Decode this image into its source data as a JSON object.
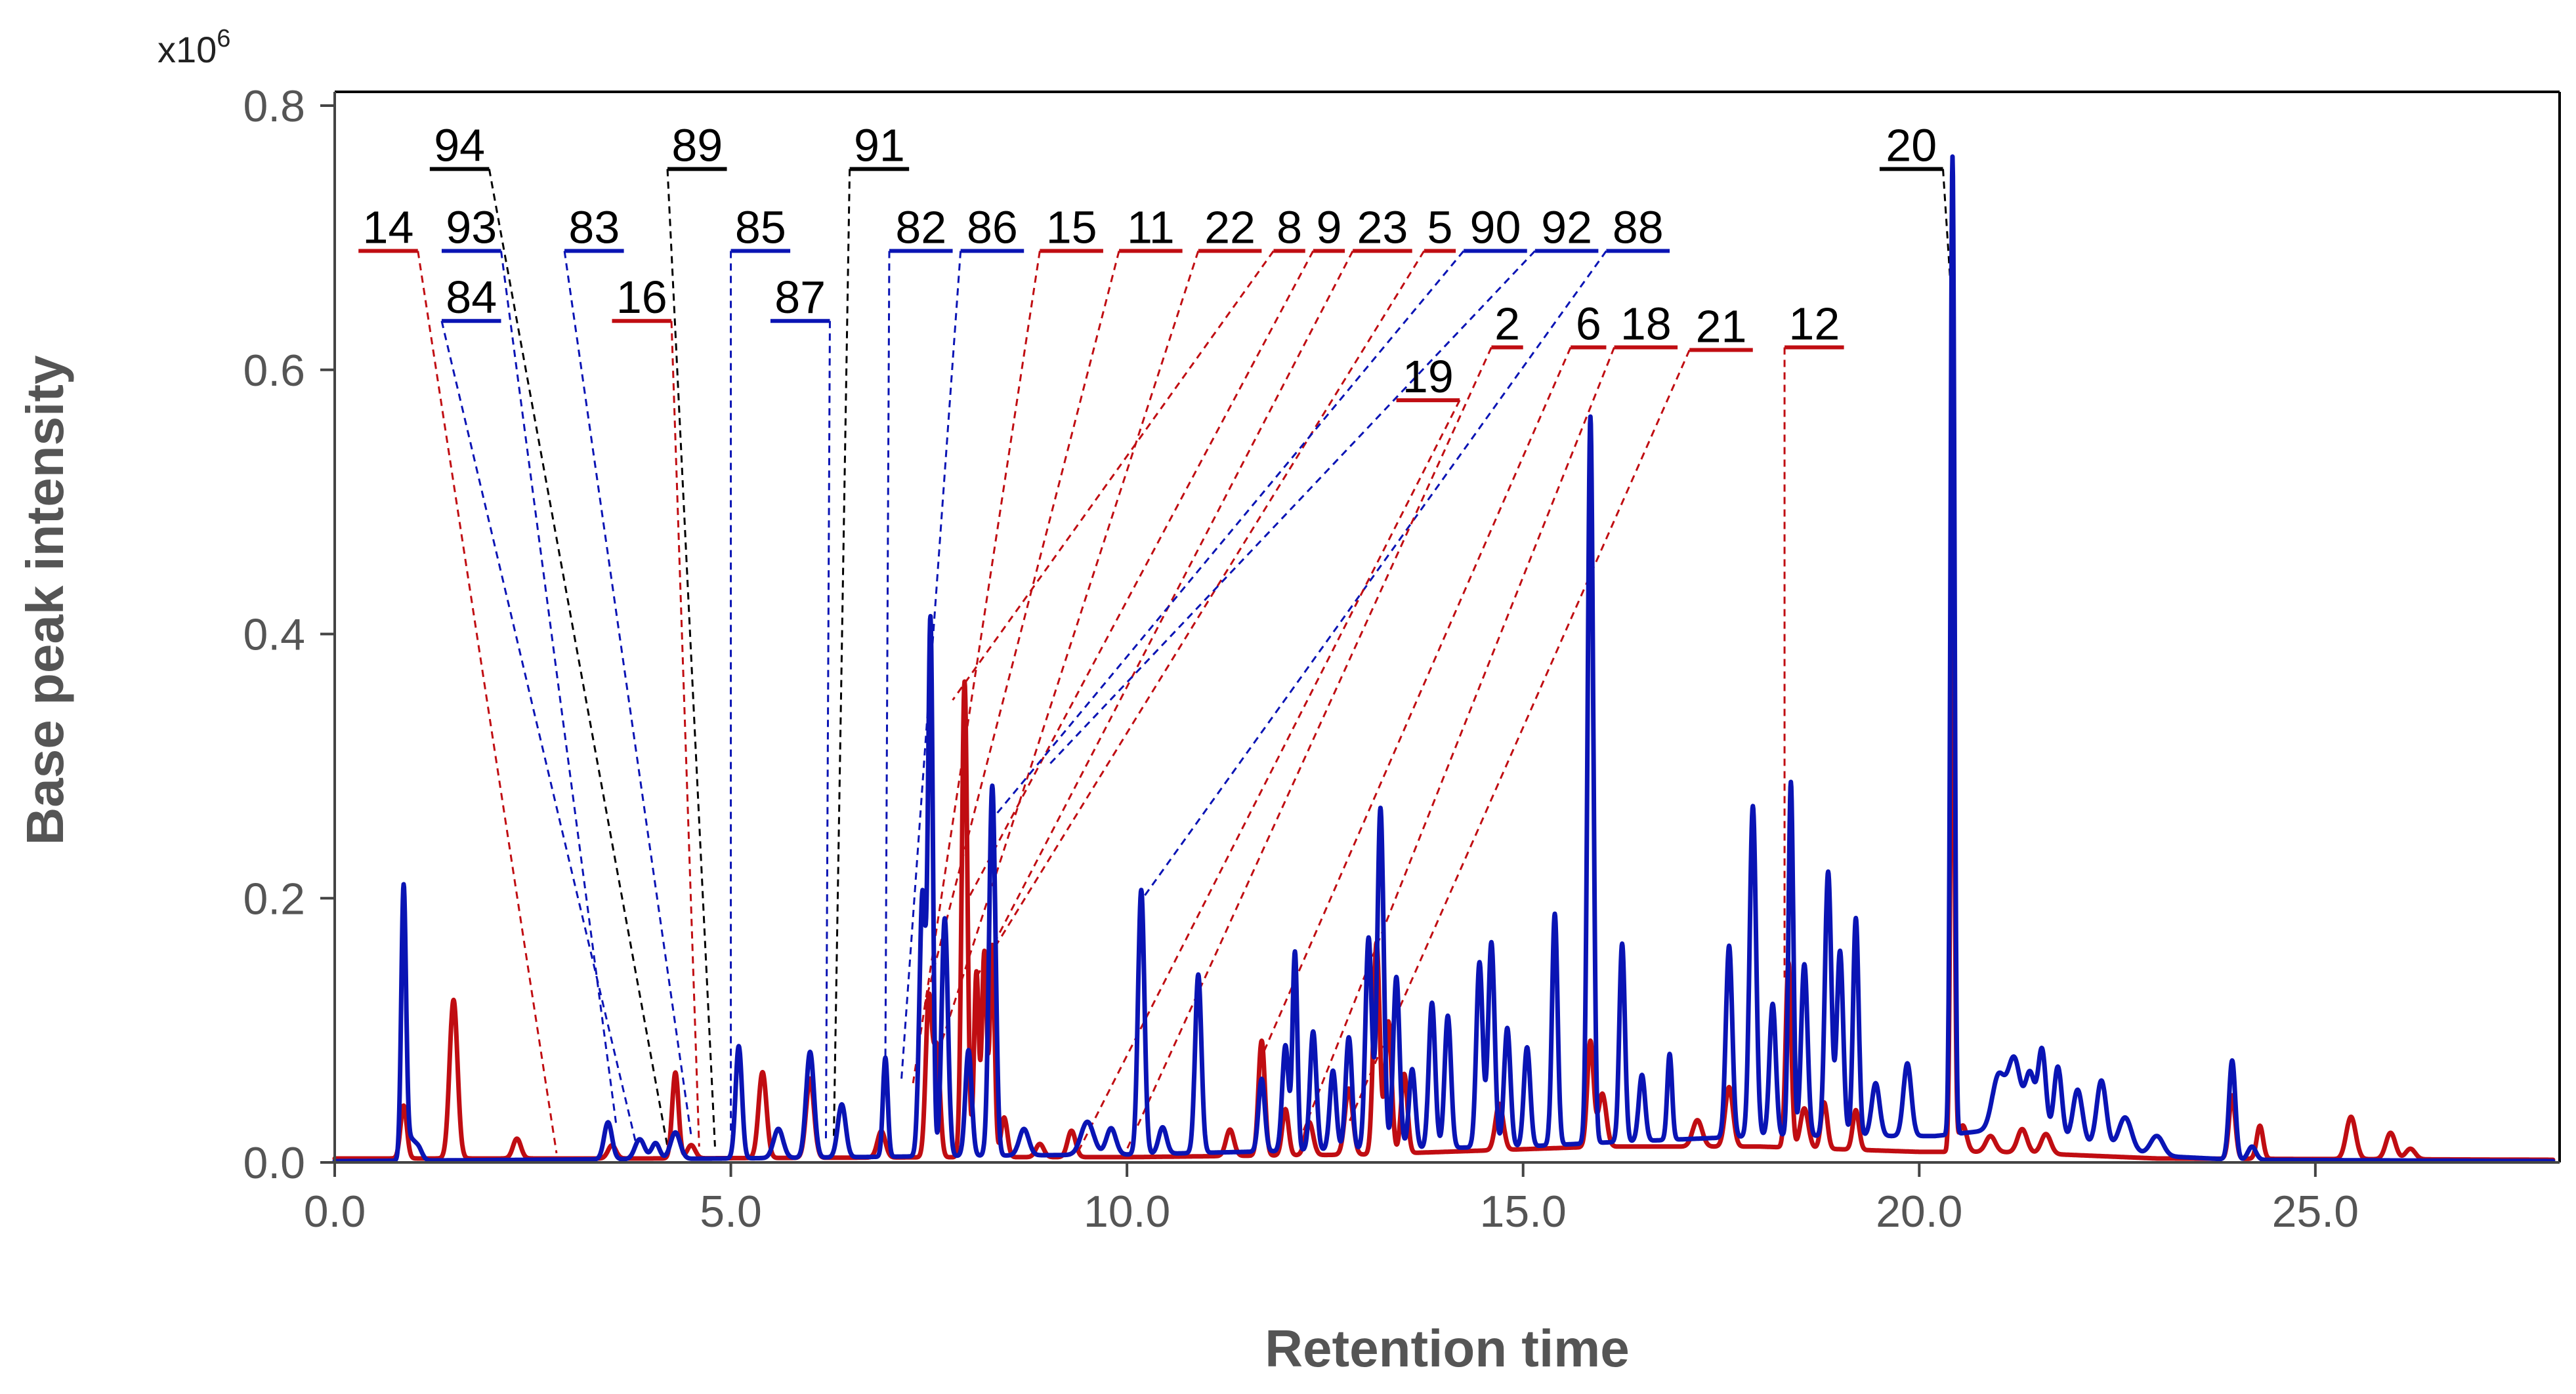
{
  "chart_data": {
    "type": "line",
    "xlabel": "Retention time",
    "ylabel": "Base peak intensity",
    "y_multiplier": {
      "base": "x10",
      "exponent": "6"
    },
    "xlim": [
      0,
      28
    ],
    "ylim": [
      0,
      0.8
    ],
    "x_ticks": [
      0,
      5,
      10,
      15,
      20,
      25
    ],
    "x_tick_labels": [
      "0.0",
      "5.0",
      "10.0",
      "15.0",
      "20.0",
      "25.0"
    ],
    "y_ticks": [
      0,
      0.2,
      0.4,
      0.6,
      0.8
    ],
    "y_tick_labels": [
      "0.0",
      "0.2",
      "0.4",
      "0.6",
      "0.8"
    ],
    "colors": {
      "blue": "#0a14b4",
      "red": "#c00d12",
      "black": "#000000",
      "axis": "#444444"
    },
    "series": [
      {
        "name": "blue trace",
        "color": "#0a14b4",
        "baseline": [
          [
            0,
            0.001
          ],
          [
            5,
            0.003
          ],
          [
            8,
            0.005
          ],
          [
            10,
            0.006
          ],
          [
            13,
            0.01
          ],
          [
            15,
            0.012
          ],
          [
            16,
            0.015
          ],
          [
            18,
            0.02
          ],
          [
            20.2,
            0.02
          ],
          [
            21,
            0.025
          ],
          [
            23,
            0.005
          ],
          [
            24,
            0.002
          ],
          [
            28,
            0.001
          ]
        ],
        "peaks": [
          [
            0.87,
            0.205,
            0.03
          ],
          [
            0.95,
            0.015,
            0.05
          ],
          [
            1.05,
            0.01,
            0.05
          ],
          [
            3.45,
            0.028,
            0.05
          ],
          [
            3.85,
            0.015,
            0.06
          ],
          [
            4.05,
            0.012,
            0.05
          ],
          [
            4.3,
            0.02,
            0.06
          ],
          [
            5.1,
            0.085,
            0.04
          ],
          [
            5.6,
            0.022,
            0.06
          ],
          [
            6.0,
            0.08,
            0.05
          ],
          [
            6.4,
            0.04,
            0.05
          ],
          [
            6.95,
            0.075,
            0.03
          ],
          [
            7.42,
            0.2,
            0.04
          ],
          [
            7.52,
            0.4,
            0.03
          ],
          [
            7.7,
            0.18,
            0.04
          ],
          [
            8.0,
            0.08,
            0.04
          ],
          [
            8.3,
            0.28,
            0.04
          ],
          [
            8.7,
            0.02,
            0.06
          ],
          [
            9.5,
            0.025,
            0.08
          ],
          [
            9.8,
            0.02,
            0.06
          ],
          [
            10.18,
            0.2,
            0.04
          ],
          [
            10.45,
            0.02,
            0.05
          ],
          [
            10.9,
            0.135,
            0.04
          ],
          [
            11.7,
            0.055,
            0.04
          ],
          [
            12.0,
            0.08,
            0.04
          ],
          [
            12.12,
            0.15,
            0.03
          ],
          [
            12.35,
            0.09,
            0.04
          ],
          [
            12.6,
            0.06,
            0.04
          ],
          [
            12.8,
            0.085,
            0.04
          ],
          [
            13.05,
            0.16,
            0.04
          ],
          [
            13.2,
            0.258,
            0.04
          ],
          [
            13.4,
            0.13,
            0.04
          ],
          [
            13.6,
            0.06,
            0.04
          ],
          [
            13.85,
            0.11,
            0.04
          ],
          [
            14.05,
            0.1,
            0.04
          ],
          [
            14.45,
            0.14,
            0.04
          ],
          [
            14.6,
            0.155,
            0.04
          ],
          [
            14.8,
            0.09,
            0.04
          ],
          [
            15.05,
            0.075,
            0.04
          ],
          [
            15.4,
            0.175,
            0.035
          ],
          [
            15.85,
            0.55,
            0.035
          ],
          [
            16.25,
            0.15,
            0.035
          ],
          [
            16.5,
            0.05,
            0.04
          ],
          [
            16.85,
            0.065,
            0.03
          ],
          [
            17.6,
            0.145,
            0.04
          ],
          [
            17.9,
            0.25,
            0.04
          ],
          [
            18.15,
            0.1,
            0.04
          ],
          [
            18.38,
            0.268,
            0.03
          ],
          [
            18.55,
            0.13,
            0.04
          ],
          [
            18.85,
            0.2,
            0.04
          ],
          [
            19.0,
            0.14,
            0.04
          ],
          [
            19.2,
            0.165,
            0.035
          ],
          [
            19.45,
            0.04,
            0.05
          ],
          [
            19.85,
            0.055,
            0.05
          ],
          [
            20.42,
            0.74,
            0.025
          ],
          [
            21.0,
            0.04,
            0.08
          ],
          [
            21.2,
            0.055,
            0.08
          ],
          [
            21.4,
            0.045,
            0.06
          ],
          [
            21.55,
            0.065,
            0.05
          ],
          [
            21.75,
            0.055,
            0.05
          ],
          [
            22.0,
            0.04,
            0.06
          ],
          [
            22.3,
            0.05,
            0.06
          ],
          [
            22.6,
            0.025,
            0.08
          ],
          [
            23.0,
            0.015,
            0.08
          ],
          [
            23.95,
            0.075,
            0.04
          ],
          [
            24.2,
            0.01,
            0.05
          ]
        ]
      },
      {
        "name": "red trace",
        "color": "#c00d12",
        "baseline": [
          [
            0,
            0.003
          ],
          [
            4,
            0.003
          ],
          [
            8,
            0.004
          ],
          [
            10,
            0.004
          ],
          [
            13,
            0.006
          ],
          [
            15,
            0.01
          ],
          [
            16,
            0.012
          ],
          [
            18,
            0.012
          ],
          [
            20,
            0.008
          ],
          [
            21,
            0.008
          ],
          [
            23,
            0.003
          ],
          [
            28,
            0.002
          ]
        ],
        "peaks": [
          [
            0.87,
            0.04,
            0.04
          ],
          [
            1.5,
            0.12,
            0.05
          ],
          [
            2.3,
            0.015,
            0.05
          ],
          [
            3.5,
            0.01,
            0.05
          ],
          [
            4.3,
            0.065,
            0.04
          ],
          [
            4.5,
            0.01,
            0.05
          ],
          [
            5.4,
            0.065,
            0.05
          ],
          [
            6.0,
            0.06,
            0.05
          ],
          [
            6.9,
            0.02,
            0.05
          ],
          [
            7.5,
            0.12,
            0.04
          ],
          [
            7.6,
            0.08,
            0.04
          ],
          [
            7.95,
            0.36,
            0.035
          ],
          [
            8.1,
            0.14,
            0.03
          ],
          [
            8.2,
            0.155,
            0.03
          ],
          [
            8.3,
            0.16,
            0.03
          ],
          [
            8.45,
            0.03,
            0.04
          ],
          [
            8.9,
            0.01,
            0.05
          ],
          [
            9.3,
            0.02,
            0.05
          ],
          [
            11.3,
            0.02,
            0.05
          ],
          [
            11.7,
            0.087,
            0.04
          ],
          [
            12.0,
            0.035,
            0.04
          ],
          [
            12.3,
            0.025,
            0.05
          ],
          [
            12.8,
            0.05,
            0.05
          ],
          [
            13.15,
            0.16,
            0.04
          ],
          [
            13.3,
            0.1,
            0.04
          ],
          [
            13.5,
            0.06,
            0.04
          ],
          [
            14.7,
            0.035,
            0.05
          ],
          [
            15.85,
            0.08,
            0.04
          ],
          [
            16.0,
            0.04,
            0.05
          ],
          [
            17.2,
            0.02,
            0.06
          ],
          [
            17.6,
            0.045,
            0.05
          ],
          [
            18.35,
            0.14,
            0.035
          ],
          [
            18.55,
            0.03,
            0.05
          ],
          [
            18.8,
            0.035,
            0.04
          ],
          [
            19.2,
            0.03,
            0.04
          ],
          [
            20.42,
            0.435,
            0.025
          ],
          [
            20.55,
            0.02,
            0.05
          ],
          [
            20.9,
            0.012,
            0.06
          ],
          [
            21.3,
            0.018,
            0.06
          ],
          [
            21.6,
            0.015,
            0.06
          ],
          [
            23.95,
            0.048,
            0.04
          ],
          [
            24.3,
            0.025,
            0.04
          ],
          [
            25.45,
            0.032,
            0.06
          ],
          [
            25.95,
            0.02,
            0.06
          ],
          [
            26.2,
            0.008,
            0.06
          ]
        ]
      }
    ],
    "annotations": [
      {
        "label": "14",
        "color": "red",
        "bar_x": [
          0.3,
          1.05
        ],
        "bar_y": 0.69,
        "anchor_bar_x": 1.05,
        "target_x": 2.8,
        "target_y": 0.007
      },
      {
        "label": "93",
        "color": "blue",
        "bar_x": [
          1.35,
          2.1
        ],
        "bar_y": 0.69,
        "anchor_bar_x": 2.1,
        "target_x": 3.55,
        "target_y": 0.03
      },
      {
        "label": "84",
        "color": "blue",
        "bar_x": [
          1.35,
          2.1
        ],
        "bar_y": 0.637,
        "anchor_bar_x": 1.35,
        "target_x": 3.8,
        "target_y": 0.015
      },
      {
        "label": "94",
        "color": "black",
        "bar_x": [
          1.2,
          1.95
        ],
        "bar_y": 0.752,
        "anchor_bar_x": 1.95,
        "target_x": 4.2,
        "target_y": 0.012
      },
      {
        "label": "83",
        "color": "blue",
        "bar_x": [
          2.9,
          3.65
        ],
        "bar_y": 0.69,
        "anchor_bar_x": 2.9,
        "target_x": 4.5,
        "target_y": 0.02
      },
      {
        "label": "16",
        "color": "red",
        "bar_x": [
          3.5,
          4.25
        ],
        "bar_y": 0.637,
        "anchor_bar_x": 4.25,
        "target_x": 4.6,
        "target_y": 0.012
      },
      {
        "label": "89",
        "color": "black",
        "bar_x": [
          4.2,
          4.95
        ],
        "bar_y": 0.752,
        "anchor_bar_x": 4.2,
        "target_x": 4.8,
        "target_y": 0.012
      },
      {
        "label": "85",
        "color": "blue",
        "bar_x": [
          5.0,
          5.75
        ],
        "bar_y": 0.69,
        "anchor_bar_x": 5.0,
        "target_x": 5.0,
        "target_y": 0.02
      },
      {
        "label": "87",
        "color": "blue",
        "bar_x": [
          5.5,
          6.25
        ],
        "bar_y": 0.637,
        "anchor_bar_x": 6.25,
        "target_x": 6.2,
        "target_y": 0.015
      },
      {
        "label": "91",
        "color": "black",
        "bar_x": [
          6.5,
          7.25
        ],
        "bar_y": 0.752,
        "anchor_bar_x": 6.5,
        "target_x": 6.3,
        "target_y": 0.02
      },
      {
        "label": "82",
        "color": "blue",
        "bar_x": [
          7.0,
          7.8
        ],
        "bar_y": 0.69,
        "anchor_bar_x": 7.0,
        "target_x": 6.95,
        "target_y": 0.07
      },
      {
        "label": "86",
        "color": "blue",
        "bar_x": [
          7.9,
          8.7
        ],
        "bar_y": 0.69,
        "anchor_bar_x": 7.9,
        "target_x": 7.15,
        "target_y": 0.06
      },
      {
        "label": "15",
        "color": "red",
        "bar_x": [
          8.9,
          9.7
        ],
        "bar_y": 0.69,
        "anchor_bar_x": 8.9,
        "target_x": 7.3,
        "target_y": 0.06
      },
      {
        "label": "11",
        "color": "red",
        "bar_x": [
          9.9,
          10.7
        ],
        "bar_y": 0.69,
        "anchor_bar_x": 9.9,
        "target_x": 7.45,
        "target_y": 0.12
      },
      {
        "label": "22",
        "color": "red",
        "bar_x": [
          10.9,
          11.7
        ],
        "bar_y": 0.69,
        "anchor_bar_x": 10.9,
        "target_x": 7.6,
        "target_y": 0.08
      },
      {
        "label": "8",
        "color": "red",
        "bar_x": [
          11.85,
          12.25
        ],
        "bar_y": 0.69,
        "anchor_bar_x": 11.85,
        "target_x": 7.8,
        "target_y": 0.35
      },
      {
        "label": "9",
        "color": "red",
        "bar_x": [
          12.35,
          12.75
        ],
        "bar_y": 0.69,
        "anchor_bar_x": 12.35,
        "target_x": 8.0,
        "target_y": 0.2
      },
      {
        "label": "23",
        "color": "red",
        "bar_x": [
          12.85,
          13.6
        ],
        "bar_y": 0.69,
        "anchor_bar_x": 12.85,
        "target_x": 8.1,
        "target_y": 0.14
      },
      {
        "label": "5",
        "color": "red",
        "bar_x": [
          13.75,
          14.15
        ],
        "bar_y": 0.69,
        "anchor_bar_x": 13.75,
        "target_x": 8.2,
        "target_y": 0.15
      },
      {
        "label": "90",
        "color": "blue",
        "bar_x": [
          14.25,
          15.05
        ],
        "bar_y": 0.69,
        "anchor_bar_x": 14.25,
        "target_x": 8.3,
        "target_y": 0.26
      },
      {
        "label": "92",
        "color": "blue",
        "bar_x": [
          15.15,
          15.95
        ],
        "bar_y": 0.69,
        "anchor_bar_x": 15.15,
        "target_x": 9.0,
        "target_y": 0.3
      },
      {
        "label": "88",
        "color": "blue",
        "bar_x": [
          16.05,
          16.85
        ],
        "bar_y": 0.69,
        "anchor_bar_x": 16.05,
        "target_x": 10.2,
        "target_y": 0.2
      },
      {
        "label": "19",
        "color": "red",
        "bar_x": [
          13.4,
          14.2
        ],
        "bar_y": 0.577,
        "anchor_bar_x": 14.2,
        "target_x": 9.4,
        "target_y": 0.01
      },
      {
        "label": "2",
        "color": "red",
        "bar_x": [
          14.6,
          15.0
        ],
        "bar_y": 0.617,
        "anchor_bar_x": 14.6,
        "target_x": 10.0,
        "target_y": 0.01
      },
      {
        "label": "6",
        "color": "red",
        "bar_x": [
          15.6,
          16.05
        ],
        "bar_y": 0.617,
        "anchor_bar_x": 15.6,
        "target_x": 11.7,
        "target_y": 0.08
      },
      {
        "label": "18",
        "color": "red",
        "bar_x": [
          16.15,
          16.95
        ],
        "bar_y": 0.617,
        "anchor_bar_x": 16.15,
        "target_x": 12.2,
        "target_y": 0.02
      },
      {
        "label": "21",
        "color": "red",
        "bar_x": [
          17.1,
          17.9
        ],
        "bar_y": 0.615,
        "anchor_bar_x": 17.1,
        "target_x": 12.8,
        "target_y": 0.03
      },
      {
        "label": "12",
        "color": "red",
        "bar_x": [
          18.3,
          19.05
        ],
        "bar_y": 0.617,
        "anchor_bar_x": 18.3,
        "target_x": 18.3,
        "target_y": 0.14
      },
      {
        "label": "20",
        "color": "black",
        "bar_x": [
          19.5,
          20.3
        ],
        "bar_y": 0.752,
        "anchor_bar_x": 20.3,
        "target_x": 20.4,
        "target_y": 0.66
      }
    ]
  }
}
